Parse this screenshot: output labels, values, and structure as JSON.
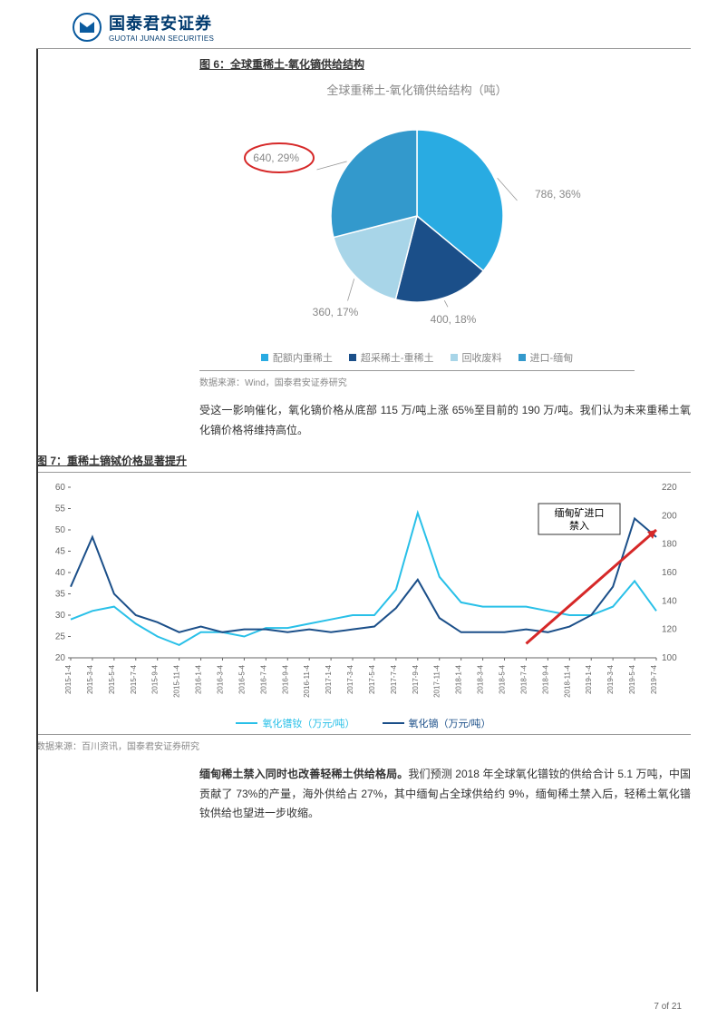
{
  "header": {
    "company_cn": "国泰君安证券",
    "company_en": "GUOTAI JUNAN SECURITIES",
    "logo_color": "#0a5a9e"
  },
  "fig6": {
    "title": "图 6：全球重稀土-氧化镝供给结构",
    "chart_title": "全球重稀土-氧化镝供给结构（吨）",
    "type": "pie",
    "slices": [
      {
        "label": "配额内重稀土",
        "value": 786,
        "pct": 36,
        "text": "786, 36%",
        "color": "#29abe2"
      },
      {
        "label": "超采稀土-重稀土",
        "value": 400,
        "pct": 18,
        "text": "400, 18%",
        "color": "#1b4f89"
      },
      {
        "label": "回收废料",
        "value": 360,
        "pct": 17,
        "text": "360, 17%",
        "color": "#a8d5e8"
      },
      {
        "label": "进口-缅甸",
        "value": 640,
        "pct": 29,
        "text": "640, 29%",
        "color": "#3399cc"
      }
    ],
    "highlight_circle_color": "#d62828",
    "source": "数据来源：Wind，国泰君安证券研究"
  },
  "para1": "受这一影响催化，氧化镝价格从底部 115 万/吨上涨 65%至目前的 190 万/吨。我们认为未来重稀土氧化镝价格将维持高位。",
  "fig7": {
    "title": "图 7：重稀土镝铽价格显著提升",
    "type": "line",
    "left_axis": {
      "min": 20,
      "max": 60,
      "step": 5,
      "color": "#666"
    },
    "right_axis": {
      "min": 100,
      "max": 220,
      "step": 20,
      "color": "#666"
    },
    "x_labels": [
      "2015-1-4",
      "2015-3-4",
      "2015-5-4",
      "2015-7-4",
      "2015-9-4",
      "2015-11-4",
      "2016-1-4",
      "2016-3-4",
      "2016-5-4",
      "2016-7-4",
      "2016-9-4",
      "2016-11-4",
      "2017-1-4",
      "2017-3-4",
      "2017-5-4",
      "2017-7-4",
      "2017-9-4",
      "2017-11-4",
      "2018-1-4",
      "2018-3-4",
      "2018-5-4",
      "2018-7-4",
      "2018-9-4",
      "2018-11-4",
      "2019-1-4",
      "2019-3-4",
      "2019-5-4",
      "2019-7-4"
    ],
    "series": [
      {
        "name": "氧化镨钕（万元/吨）",
        "axis": "left",
        "color": "#29c0e8",
        "values": [
          29,
          31,
          32,
          28,
          25,
          23,
          26,
          26,
          25,
          27,
          27,
          28,
          29,
          30,
          30,
          36,
          54,
          39,
          33,
          32,
          32,
          32,
          31,
          30,
          30,
          32,
          38,
          31
        ]
      },
      {
        "name": "氧化镝（万元/吨）",
        "axis": "right",
        "color": "#1b4f89",
        "values": [
          150,
          185,
          145,
          130,
          125,
          118,
          122,
          118,
          120,
          120,
          118,
          120,
          118,
          120,
          122,
          135,
          155,
          128,
          118,
          118,
          118,
          120,
          118,
          122,
          130,
          150,
          198,
          185
        ]
      }
    ],
    "annotation": {
      "text": "缅甸矿进口禁入",
      "box_border": "#333",
      "arrow_color": "#d62828"
    },
    "source": "数据来源：百川资讯，国泰君安证券研究"
  },
  "para2": {
    "bold": "缅甸稀土禁入同时也改善轻稀土供给格局。",
    "rest": "我们预测 2018 年全球氧化镨钕的供给合计 5.1 万吨，中国贡献了 73%的产量，海外供给占 27%，其中缅甸占全球供给约 9%，缅甸稀土禁入后，轻稀土氧化镨钕供给也望进一步收缩。"
  },
  "page": {
    "label": "7 of 21"
  },
  "axis_font_size": 10,
  "x_label_font_size": 8
}
